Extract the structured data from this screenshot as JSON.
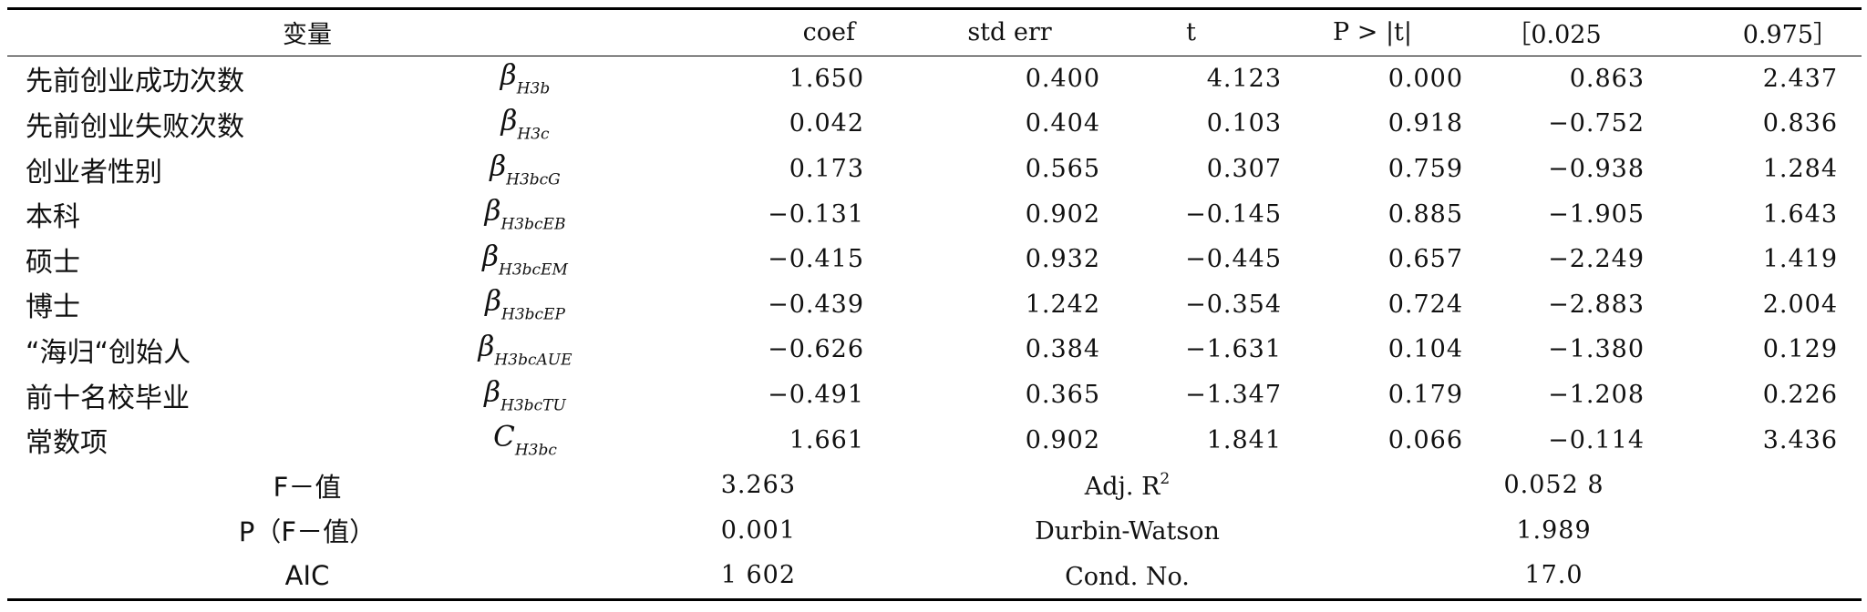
{
  "headers": {
    "variable": "变量",
    "coef": "coef",
    "std_err": "std err",
    "t": "t",
    "p": "P > |t|",
    "ci_low": "［0.025",
    "ci_high": "0.975］"
  },
  "rows": [
    {
      "name": "先前创业成功次数",
      "beta": "β",
      "beta_sub": "H3b",
      "coef": "1.650",
      "std_err": "0.400",
      "t": "4.123",
      "p": "0.000",
      "ci_low": "0.863",
      "ci_high": "2.437"
    },
    {
      "name": "先前创业失败次数",
      "beta": "β",
      "beta_sub": "H3c",
      "coef": "0.042",
      "std_err": "0.404",
      "t": "0.103",
      "p": "0.918",
      "ci_low": "−0.752",
      "ci_high": "0.836"
    },
    {
      "name": "创业者性别",
      "beta": "β",
      "beta_sub": "H3bcG",
      "coef": "0.173",
      "std_err": "0.565",
      "t": "0.307",
      "p": "0.759",
      "ci_low": "−0.938",
      "ci_high": "1.284"
    },
    {
      "name": "本科",
      "beta": "β",
      "beta_sub": "H3bcEB",
      "coef": "−0.131",
      "std_err": "0.902",
      "t": "−0.145",
      "p": "0.885",
      "ci_low": "−1.905",
      "ci_high": "1.643"
    },
    {
      "name": "硕士",
      "beta": "β",
      "beta_sub": "H3bcEM",
      "coef": "−0.415",
      "std_err": "0.932",
      "t": "−0.445",
      "p": "0.657",
      "ci_low": "−2.249",
      "ci_high": "1.419"
    },
    {
      "name": "博士",
      "beta": "β",
      "beta_sub": "H3bcEP",
      "coef": "−0.439",
      "std_err": "1.242",
      "t": "−0.354",
      "p": "0.724",
      "ci_low": "−2.883",
      "ci_high": "2.004"
    },
    {
      "name": "“海归“创始人",
      "beta": "β",
      "beta_sub": "H3bcAUE",
      "coef": "−0.626",
      "std_err": "0.384",
      "t": "−1.631",
      "p": "0.104",
      "ci_low": "−1.380",
      "ci_high": "0.129"
    },
    {
      "name": "前十名校毕业",
      "beta": "β",
      "beta_sub": "H3bcTU",
      "coef": "−0.491",
      "std_err": "0.365",
      "t": "−1.347",
      "p": "0.179",
      "ci_low": "−1.208",
      "ci_high": "0.226"
    },
    {
      "name": "常数项",
      "beta": "C",
      "beta_sub": "H3bc",
      "coef": "1.661",
      "std_err": "0.902",
      "t": "1.841",
      "p": "0.066",
      "ci_low": "−0.114",
      "ci_high": "3.436"
    }
  ],
  "stats": [
    {
      "label1": "F－值",
      "value1": "3.263",
      "label2": "Adj. R",
      "label2_sup": "2",
      "value2": "0.052 8"
    },
    {
      "label1": "P（F－值）",
      "value1": "0.001",
      "label2": "Durbin-Watson",
      "label2_sup": "",
      "value2": "1.989"
    },
    {
      "label1": "AIC",
      "value1": "1 602",
      "label2": "Cond. No.",
      "label2_sup": "",
      "value2": "17.0"
    }
  ]
}
